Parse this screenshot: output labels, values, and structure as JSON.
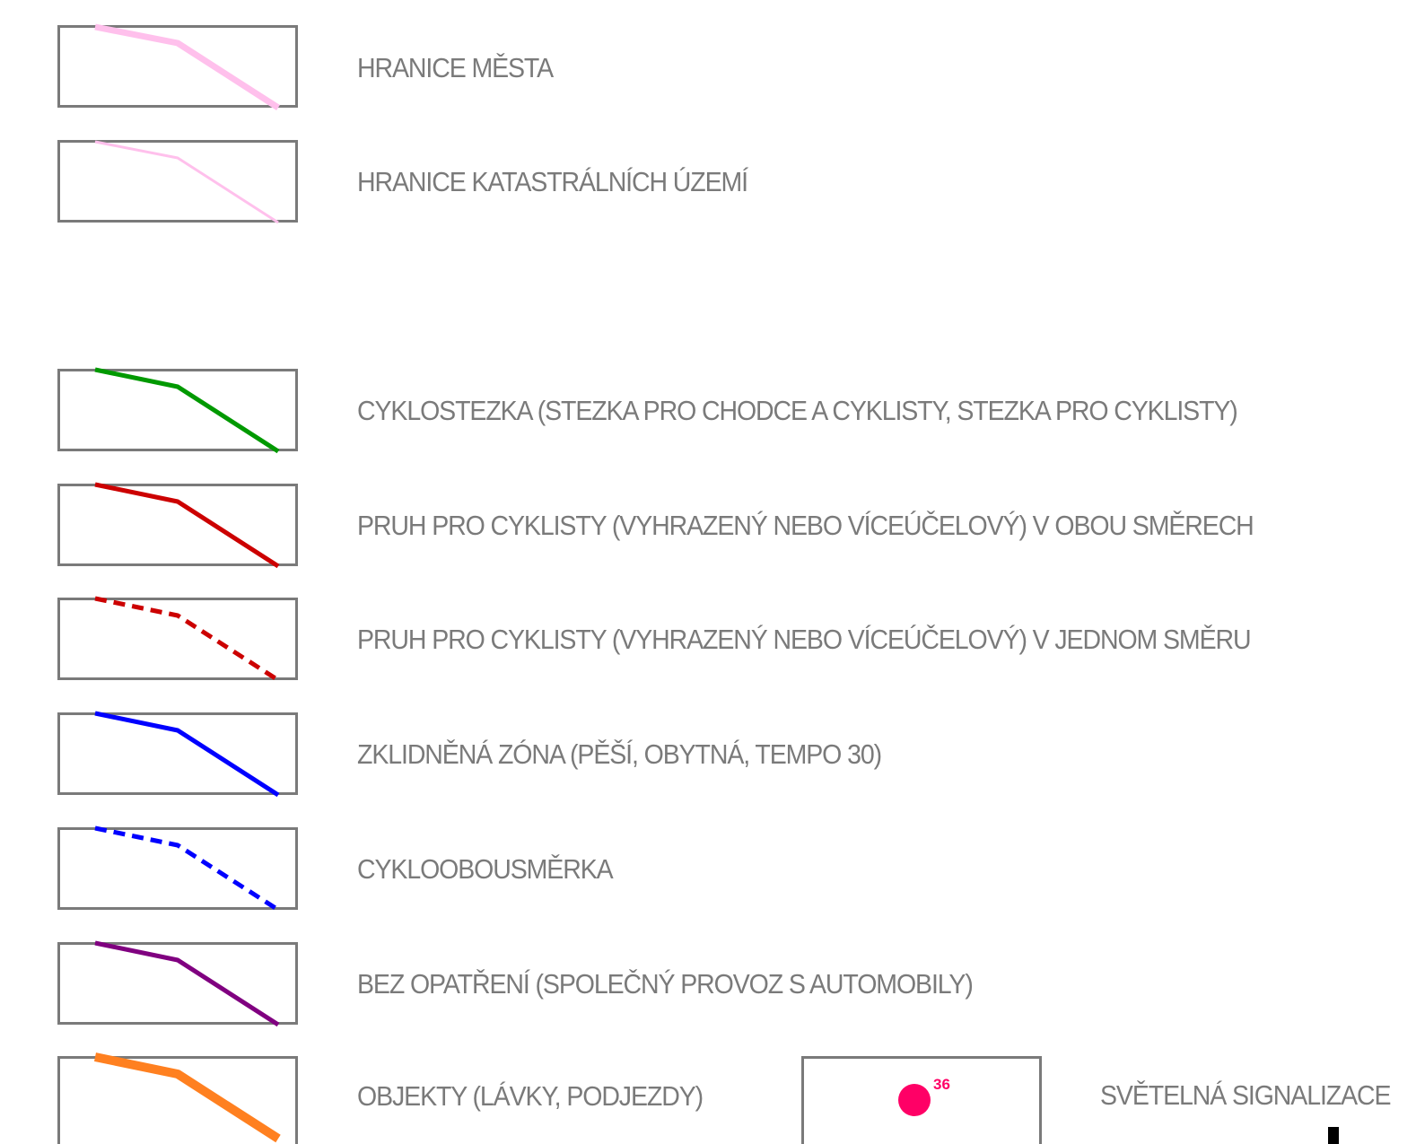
{
  "legend": {
    "items": [
      {
        "label": "HRANICE MĚSTA",
        "color": "#ffc0ec",
        "style": "solid-thick"
      },
      {
        "label": "HRANICE KATASTRÁLNÍCH ÚZEMÍ",
        "color": "#ffc0ec",
        "style": "solid-thin"
      },
      {
        "label": "CYKLOSTEZKA (STEZKA PRO CHODCE A CYKLISTY, STEZKA PRO CYKLISTY)",
        "color": "#009900",
        "style": "solid"
      },
      {
        "label": "PRUH PRO CYKLISTY (VYHRAZENÝ NEBO VÍCEÚČELOVÝ) V OBOU SMĚRECH",
        "color": "#cc0000",
        "style": "solid"
      },
      {
        "label": "PRUH PRO CYKLISTY (VYHRAZENÝ NEBO VÍCEÚČELOVÝ) V JEDNOM SMĚRU",
        "color": "#cc0000",
        "style": "dashed"
      },
      {
        "label": "ZKLIDNĚNÁ ZÓNA (PĚŠÍ, OBYTNÁ, TEMPO 30)",
        "color": "#0000ff",
        "style": "solid"
      },
      {
        "label": "CYKLOOBOUSMĚRKA",
        "color": "#0000ff",
        "style": "dashed"
      },
      {
        "label": "BEZ OPATŘENÍ (SPOLEČNÝ PROVOZ S AUTOMOBILY)",
        "color": "#800080",
        "style": "solid"
      },
      {
        "label": "OBJEKTY (LÁVKY, PODJEZDY)",
        "color": "#ff8020",
        "style": "solid-heavy"
      }
    ],
    "signal": {
      "label": "SVĚTELNÁ SIGNALIZACE",
      "number": "36",
      "color": "#ff0066"
    }
  }
}
